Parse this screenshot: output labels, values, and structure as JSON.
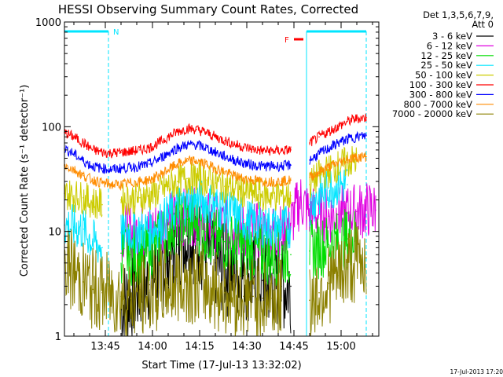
{
  "chart_data": {
    "type": "line",
    "title": "HESSI Observing Summary Count Rates, Corrected",
    "xlabel": "Start Time (17-Jul-13 13:32:02)",
    "ylabel": "Corrected Count Rate (s⁻¹ detector⁻¹)",
    "yscale": "log",
    "ylim": [
      1,
      1000
    ],
    "xlim": [
      "13:32",
      "15:12"
    ],
    "x_ticks": [
      "13:45",
      "14:00",
      "14:15",
      "14:30",
      "14:45",
      "15:00"
    ],
    "y_ticks": [
      "1",
      "10",
      "100",
      "1000"
    ],
    "grid": false,
    "legend": {
      "header": [
        "Det 1,3,5,6,7,9,",
        "Att 0"
      ],
      "placement": "right"
    },
    "x": [
      "13:32",
      "13:35",
      "13:38",
      "13:41",
      "13:44",
      "13:47",
      "13:50",
      "13:53",
      "13:56",
      "13:59",
      "14:02",
      "14:05",
      "14:08",
      "14:11",
      "14:14",
      "14:17",
      "14:20",
      "14:23",
      "14:26",
      "14:29",
      "14:32",
      "14:35",
      "14:38",
      "14:41",
      "14:44",
      "14:47",
      "14:50",
      "14:53",
      "14:56",
      "14:59",
      "15:02",
      "15:05",
      "15:08",
      "15:11"
    ],
    "series": [
      {
        "name": "3 - 6 keV",
        "color": "#000000",
        "values": [
          null,
          null,
          null,
          null,
          null,
          null,
          1.8,
          2.5,
          2.8,
          3.1,
          4.2,
          5.2,
          7.5,
          9.0,
          8.5,
          6.5,
          5.0,
          4.2,
          4.0,
          3.8,
          3.6,
          3.4,
          3.2,
          3.0,
          3.0,
          null,
          null,
          null,
          null,
          null,
          null,
          null,
          null,
          null
        ]
      },
      {
        "name": "6 - 12 keV",
        "color": "#e000e0",
        "values": [
          null,
          null,
          null,
          null,
          null,
          null,
          9.8,
          9.8,
          10,
          10.3,
          11,
          12.5,
          13.5,
          14.0,
          13.8,
          13.0,
          12.0,
          11.0,
          10.5,
          10.2,
          10.0,
          9.8,
          9.8,
          9.8,
          12,
          20,
          15,
          14.5,
          14,
          14.5,
          15,
          15.5,
          16,
          16
        ]
      },
      {
        "name": "12 - 25 keV",
        "color": "#00dd00",
        "values": [
          null,
          null,
          null,
          null,
          null,
          null,
          6.2,
          6.0,
          6.0,
          6.5,
          8.0,
          10.5,
          12.5,
          13.0,
          12.0,
          10.0,
          8.5,
          8.0,
          7.5,
          7.0,
          6.5,
          6.0,
          6.0,
          6.0,
          6.0,
          null,
          6.5,
          7,
          7.5,
          8,
          8.5,
          9,
          null,
          null
        ]
      },
      {
        "name": "25 - 50 keV",
        "color": "#00e5ff",
        "values": [
          11.5,
          11,
          10.5,
          8,
          7,
          null,
          9.8,
          10,
          10,
          10.5,
          11.5,
          14,
          17,
          19,
          20,
          19,
          17.5,
          16,
          14.5,
          13,
          12,
          11.5,
          11,
          11,
          11,
          null,
          18,
          22,
          26,
          28,
          28,
          null,
          null,
          null
        ]
      },
      {
        "name": "50 - 100 keV",
        "color": "#cccc00",
        "values": [
          23,
          22,
          21,
          19,
          18,
          null,
          20,
          20.5,
          21,
          22,
          24,
          27,
          30,
          32,
          32,
          31,
          29,
          27,
          25.5,
          24,
          23,
          22,
          22,
          22,
          22,
          null,
          28,
          34,
          38,
          42,
          46,
          47,
          null,
          null
        ]
      },
      {
        "name": "100 - 300 keV",
        "color": "#ff0000",
        "values": [
          88,
          80,
          70,
          60,
          57,
          56,
          57,
          58,
          60,
          63,
          70,
          80,
          90,
          96,
          94,
          88,
          80,
          74,
          68,
          64,
          61,
          59,
          59,
          59,
          60,
          null,
          70,
          80,
          90,
          100,
          112,
          120,
          122,
          null
        ]
      },
      {
        "name": "300 - 800 keV",
        "color": "#0000ff",
        "values": [
          62,
          55,
          47,
          42,
          40,
          39,
          40,
          41,
          42,
          44,
          49,
          56,
          63,
          67,
          67,
          63,
          57,
          52,
          48,
          45,
          43,
          42,
          42,
          42,
          43,
          null,
          48,
          55,
          62,
          70,
          76,
          80,
          82,
          null
        ]
      },
      {
        "name": "800 - 7000 keV",
        "color": "#ff8c00",
        "values": [
          43,
          39,
          34,
          31,
          29,
          28,
          28,
          29,
          30,
          31,
          34,
          39,
          44,
          47,
          47,
          44,
          40,
          37,
          34,
          32,
          31,
          30,
          30,
          30,
          31,
          null,
          33,
          37,
          41,
          45,
          49,
          51,
          52,
          null
        ]
      },
      {
        "name": "7000 - 20000 keV",
        "color": "#8b8000",
        "values": [
          5.0,
          4.0,
          3.3,
          2.8,
          2.6,
          2.5,
          2.4,
          2.3,
          2.4,
          2.6,
          2.8,
          3.0,
          3.2,
          3.3,
          3.2,
          3.0,
          2.8,
          2.6,
          2.5,
          2.4,
          2.4,
          2.3,
          2.3,
          2.3,
          null,
          null,
          2.2,
          2.6,
          3.2,
          3.8,
          4.5,
          5.2,
          5.6,
          null
        ]
      }
    ],
    "annotations": {
      "night_label": "N",
      "flare_label": "F",
      "flare_color": "#ff0000",
      "bar_color": "#00e5ff",
      "night_segments": [
        [
          "13:32",
          "13:46"
        ],
        [
          "14:49",
          "15:08"
        ]
      ],
      "flare_segment": [
        "14:45",
        "14:48"
      ],
      "vlines": [
        "13:46",
        "14:49",
        "15:08"
      ]
    },
    "footer": "17-Jul-2013 17:20"
  }
}
